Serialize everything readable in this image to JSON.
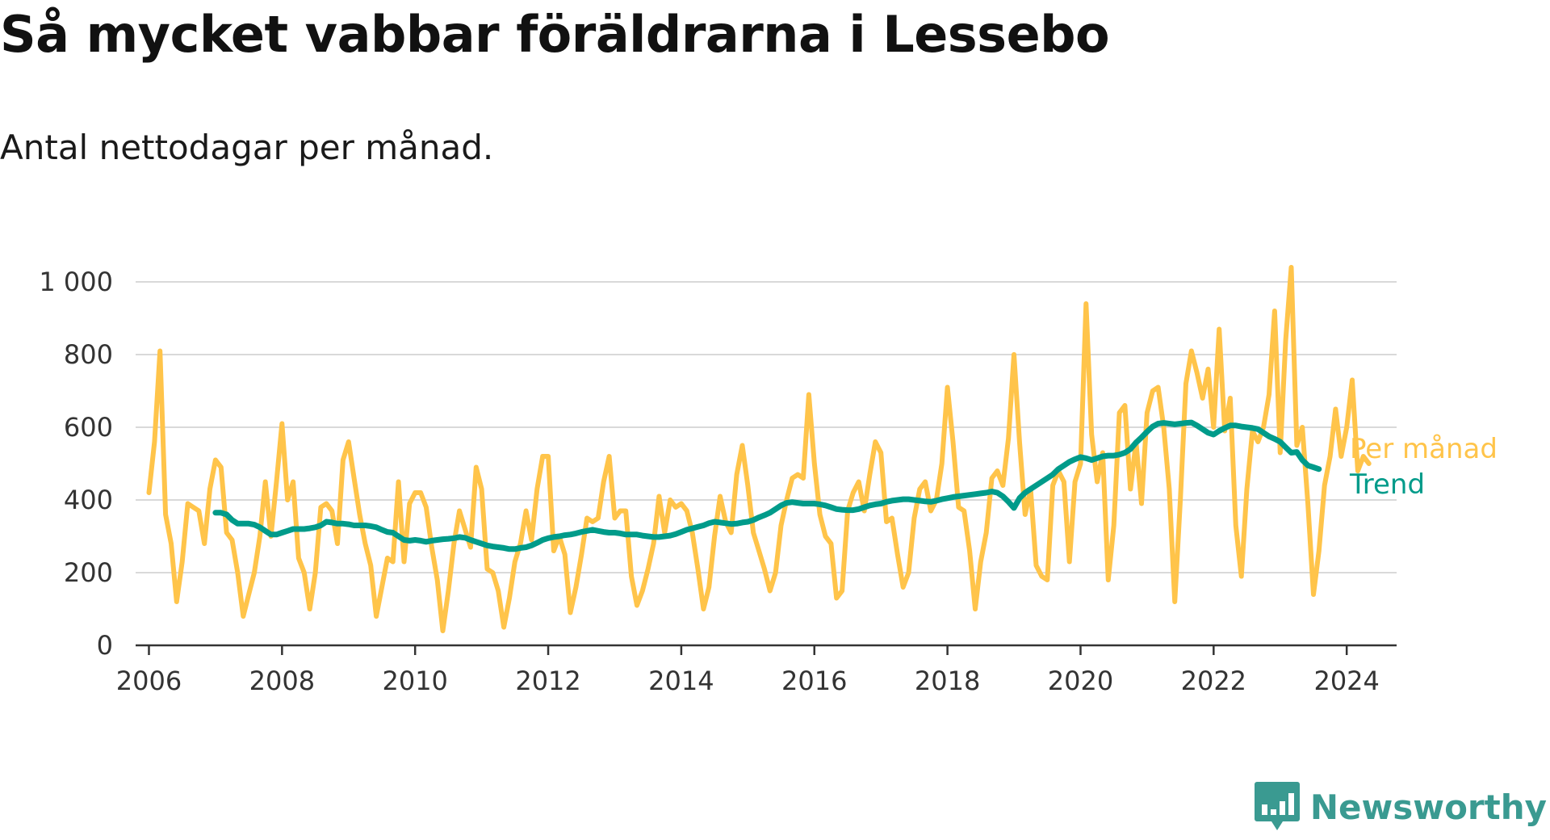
{
  "title": "Så mycket vabbar föräldrarna i Lessebo",
  "subtitle": "Antal nettodagar per månad.",
  "brand": {
    "name": "Newsworthy",
    "color": "#3a9a91"
  },
  "chart_data": {
    "type": "line",
    "x_axis": {
      "ticks": [
        2006,
        2008,
        2010,
        2012,
        2014,
        2016,
        2018,
        2020,
        2022,
        2024
      ],
      "range": [
        2005.8,
        2024.75
      ]
    },
    "y_axis": {
      "ticks": [
        0,
        200,
        400,
        600,
        800,
        1000
      ],
      "tick_labels": [
        "0",
        "200",
        "400",
        "600",
        "800",
        "1 000"
      ],
      "ylim": [
        0,
        1000
      ]
    },
    "grid": true,
    "legend_placement": "right-end",
    "series": [
      {
        "name": "Per månad",
        "color": "#ffc44a",
        "x_start_year": 2006,
        "step_months": 1,
        "values": [
          420,
          560,
          810,
          360,
          280,
          120,
          230,
          390,
          380,
          370,
          280,
          430,
          510,
          490,
          310,
          290,
          200,
          80,
          140,
          200,
          300,
          450,
          300,
          450,
          610,
          400,
          450,
          240,
          200,
          100,
          200,
          380,
          390,
          370,
          280,
          510,
          560,
          460,
          360,
          280,
          220,
          80,
          160,
          240,
          230,
          450,
          230,
          390,
          420,
          420,
          380,
          270,
          180,
          40,
          150,
          280,
          370,
          320,
          270,
          490,
          430,
          210,
          200,
          150,
          50,
          130,
          230,
          280,
          370,
          290,
          430,
          520,
          520,
          260,
          300,
          250,
          90,
          160,
          250,
          350,
          340,
          350,
          450,
          520,
          350,
          370,
          370,
          190,
          110,
          150,
          210,
          280,
          410,
          310,
          400,
          380,
          390,
          370,
          310,
          210,
          100,
          160,
          300,
          410,
          340,
          310,
          470,
          550,
          440,
          310,
          260,
          210,
          150,
          200,
          330,
          400,
          460,
          470,
          460,
          690,
          500,
          360,
          300,
          280,
          130,
          150,
          370,
          420,
          450,
          370,
          470,
          560,
          530,
          340,
          350,
          250,
          160,
          200,
          350,
          430,
          450,
          370,
          400,
          500,
          710,
          560,
          380,
          370,
          260,
          100,
          230,
          310,
          460,
          480,
          440,
          570,
          800,
          560,
          360,
          430,
          220,
          190,
          180,
          440,
          480,
          450,
          230,
          450,
          500,
          940,
          580,
          450,
          530,
          180,
          330,
          640,
          660,
          430,
          560,
          390,
          640,
          700,
          710,
          600,
          430,
          120,
          400,
          720,
          810,
          750,
          680,
          760,
          600,
          870,
          590,
          680,
          330,
          190,
          430,
          590,
          560,
          600,
          690,
          920,
          530,
          840,
          1040,
          550,
          600,
          390,
          140,
          260,
          440,
          520,
          650,
          520,
          600,
          730,
          480,
          520,
          500
        ]
      },
      {
        "name": "Trend",
        "color": "#009b8a",
        "x_start_year": 2007,
        "step_months": 1,
        "values": [
          365,
          365,
          360,
          345,
          335,
          335,
          335,
          332,
          325,
          315,
          305,
          305,
          310,
          315,
          320,
          320,
          320,
          322,
          325,
          330,
          340,
          338,
          335,
          335,
          333,
          330,
          330,
          330,
          328,
          325,
          318,
          312,
          310,
          300,
          290,
          288,
          290,
          288,
          285,
          288,
          290,
          292,
          293,
          295,
          298,
          296,
          290,
          285,
          280,
          275,
          272,
          270,
          268,
          265,
          265,
          268,
          270,
          275,
          282,
          290,
          295,
          298,
          300,
          303,
          305,
          308,
          312,
          315,
          318,
          315,
          312,
          310,
          310,
          308,
          305,
          305,
          305,
          302,
          300,
          298,
          298,
          300,
          302,
          306,
          312,
          318,
          322,
          326,
          330,
          336,
          340,
          338,
          336,
          334,
          335,
          338,
          340,
          345,
          352,
          358,
          365,
          375,
          385,
          392,
          394,
          392,
          390,
          390,
          390,
          388,
          385,
          380,
          375,
          373,
          372,
          372,
          375,
          380,
          385,
          388,
          390,
          395,
          398,
          400,
          402,
          402,
          400,
          398,
          396,
          395,
          398,
          402,
          405,
          408,
          410,
          412,
          414,
          416,
          418,
          420,
          423,
          420,
          410,
          395,
          378,
          405,
          420,
          430,
          440,
          450,
          460,
          470,
          485,
          495,
          505,
          512,
          518,
          515,
          510,
          515,
          520,
          522,
          522,
          525,
          530,
          540,
          558,
          572,
          588,
          602,
          610,
          612,
          610,
          608,
          610,
          612,
          613,
          605,
          595,
          585,
          580,
          590,
          598,
          605,
          605,
          602,
          600,
          598,
          595,
          585,
          575,
          568,
          560,
          545,
          530,
          532,
          510,
          495,
          490,
          485
        ]
      }
    ]
  }
}
